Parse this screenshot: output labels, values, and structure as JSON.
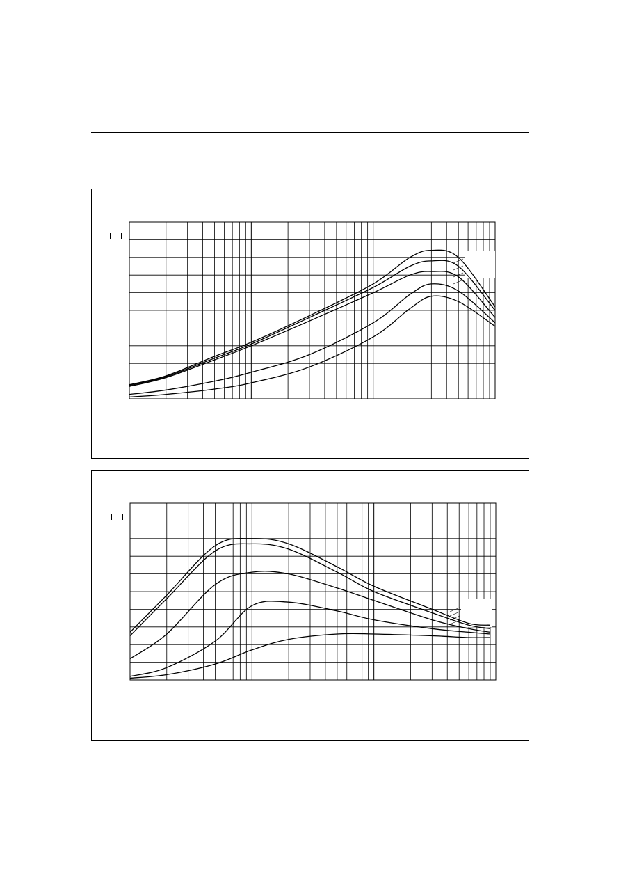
{
  "page": {
    "background": "#ffffff",
    "ink": "#000000"
  },
  "chart_data": [
    {
      "type": "line",
      "xscale": "log",
      "x_decades": 3,
      "ylim": [
        0,
        10
      ],
      "grid": true,
      "legend": "none",
      "series": [
        {
          "x": [
            1,
            2,
            5,
            10,
            30,
            100,
            200,
            300,
            500,
            1000
          ],
          "values": [
            0.8,
            1.3,
            2.4,
            3.2,
            4.7,
            6.5,
            8.0,
            8.4,
            8.0,
            5.2
          ]
        },
        {
          "x": [
            1,
            2,
            5,
            10,
            30,
            100,
            200,
            300,
            500,
            1000
          ],
          "values": [
            0.75,
            1.25,
            2.3,
            3.1,
            4.6,
            6.3,
            7.5,
            7.8,
            7.5,
            5.0
          ]
        },
        {
          "x": [
            1,
            2,
            5,
            10,
            30,
            100,
            200,
            300,
            500,
            1000
          ],
          "values": [
            0.7,
            1.2,
            2.2,
            3.0,
            4.4,
            6.0,
            7.0,
            7.2,
            6.9,
            4.6
          ]
        },
        {
          "x": [
            1,
            2,
            5,
            10,
            30,
            100,
            200,
            300,
            500,
            1000
          ],
          "values": [
            0.25,
            0.5,
            1.0,
            1.5,
            2.5,
            4.3,
            5.9,
            6.5,
            6.1,
            4.3
          ]
        },
        {
          "x": [
            1,
            2,
            5,
            10,
            30,
            100,
            200,
            300,
            500,
            1000
          ],
          "values": [
            0.1,
            0.25,
            0.55,
            0.9,
            1.8,
            3.5,
            5.1,
            5.8,
            5.5,
            4.1
          ]
        }
      ]
    },
    {
      "type": "line",
      "xscale": "log",
      "x_decades": 3,
      "ylim": [
        0,
        10
      ],
      "grid": true,
      "legend": "none",
      "series": [
        {
          "x": [
            1,
            2,
            5,
            10,
            20,
            50,
            100,
            300,
            600,
            900
          ],
          "values": [
            2.7,
            4.8,
            7.6,
            8.0,
            7.7,
            6.4,
            5.3,
            4.0,
            3.2,
            3.1
          ]
        },
        {
          "x": [
            1,
            2,
            5,
            10,
            20,
            50,
            100,
            300,
            600,
            900
          ],
          "values": [
            2.5,
            4.6,
            7.3,
            7.7,
            7.4,
            6.1,
            5.0,
            3.8,
            3.1,
            2.9
          ]
        },
        {
          "x": [
            1,
            2,
            5,
            10,
            20,
            50,
            100,
            300,
            600,
            900
          ],
          "values": [
            1.2,
            2.6,
            5.4,
            6.1,
            6.0,
            5.2,
            4.5,
            3.4,
            2.9,
            2.7
          ]
        },
        {
          "x": [
            1,
            2,
            5,
            10,
            20,
            50,
            100,
            300,
            600,
            900
          ],
          "values": [
            0.2,
            0.7,
            2.2,
            4.2,
            4.4,
            3.9,
            3.4,
            2.9,
            2.7,
            2.6
          ]
        },
        {
          "x": [
            1,
            2,
            5,
            10,
            20,
            50,
            100,
            300,
            600,
            900
          ],
          "values": [
            0.1,
            0.3,
            0.9,
            1.7,
            2.3,
            2.6,
            2.6,
            2.5,
            2.4,
            2.4
          ]
        }
      ]
    }
  ]
}
